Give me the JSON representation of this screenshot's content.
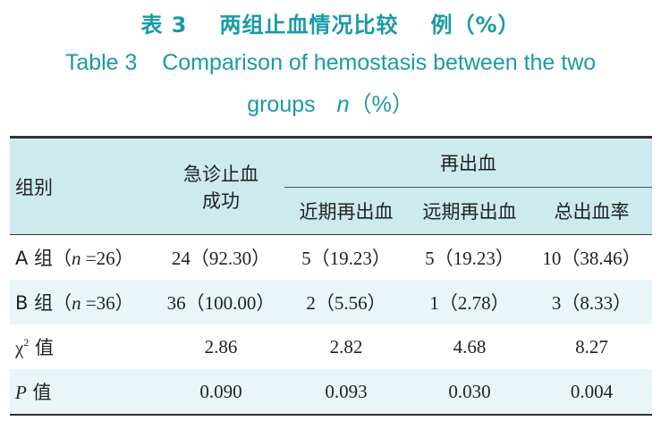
{
  "title": {
    "cn_prefix": "表 3",
    "cn_main": "两组止血情况比较",
    "cn_suffix": "例（%）",
    "en_line1": "Table 3    Comparison of hemostasis between the two",
    "en_line2_text": "groups",
    "en_line2_n": "n",
    "en_line2_pct": "（%）"
  },
  "table": {
    "header": {
      "group": "组别",
      "emergency_line1": "急诊止血",
      "emergency_line2": "成功",
      "rebleeding": "再出血",
      "short_term": "近期再出血",
      "long_term": "远期再出血",
      "total_rate": "总出血率"
    },
    "rows": [
      {
        "label_prefix": "A 组（",
        "label_n": "n",
        "label_suffix": " =26）",
        "emergency": "24（92.30）",
        "short_term": "5（19.23）",
        "long_term": "5（19.23）",
        "total": "10（38.46）"
      },
      {
        "label_prefix": "B 组（",
        "label_n": "n",
        "label_suffix": " =36）",
        "emergency": "36（100.00）",
        "short_term": "2（5.56）",
        "long_term": "1（2.78）",
        "total": "3（8.33）"
      },
      {
        "label_chi": "χ",
        "label_sup": "2",
        "label_suffix": " 值",
        "emergency": "2.86",
        "short_term": "2.82",
        "long_term": "4.68",
        "total": "8.27"
      },
      {
        "label_p": "P",
        "label_suffix": " 值",
        "emergency": "0.090",
        "short_term": "0.093",
        "long_term": "0.030",
        "total": "0.004"
      }
    ]
  },
  "colors": {
    "title": "#1a9aa6",
    "header_bg": "#cdeaee",
    "stripe_bg": "#e9f5f7"
  }
}
